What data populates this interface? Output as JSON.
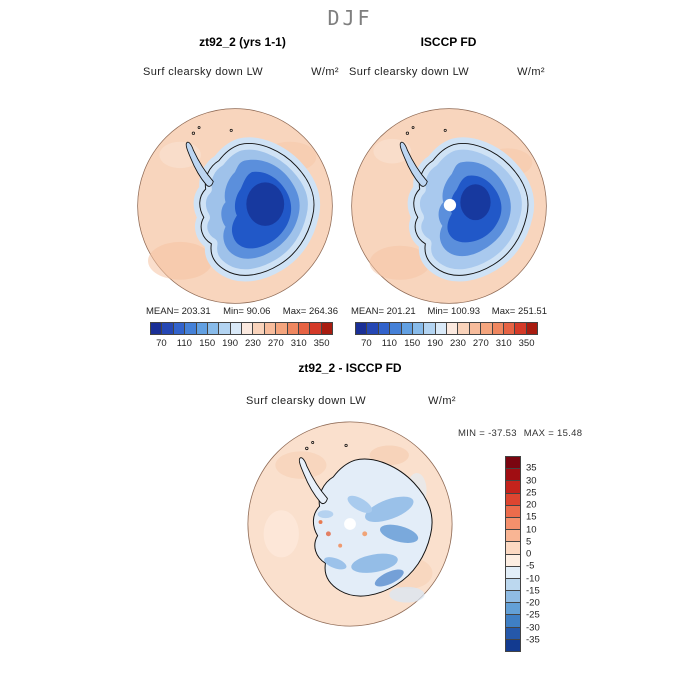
{
  "title": "DJF",
  "panel_left": {
    "title": "zt92_2 (yrs 1-1)",
    "field": "Surf clearsky down LW",
    "units": "W/m²",
    "mean_label": "MEAN=",
    "mean": "203.31",
    "min_label": "Min=",
    "min": "90.06",
    "max_label": "Max=",
    "max": "264.36"
  },
  "panel_right": {
    "title": "ISCCP FD",
    "field": "Surf clearsky down LW",
    "units": "W/m²",
    "mean_label": "MEAN=",
    "mean": "201.21",
    "min_label": "Min=",
    "min": "100.93",
    "max_label": "Max=",
    "max": "251.51"
  },
  "panel_diff": {
    "title": "zt92_2 - ISCCP FD",
    "field": "Surf clearsky down LW",
    "units": "W/m²",
    "min_label": "MIN =",
    "min": "-37.53",
    "max_label": "MAX =",
    "max": "15.48"
  },
  "colorbar": {
    "ticks": [
      "70",
      "110",
      "150",
      "190",
      "230",
      "270",
      "310",
      "350"
    ],
    "colors": [
      "#1a2f96",
      "#2547b4",
      "#3263cc",
      "#4581d8",
      "#62a0e2",
      "#88bbea",
      "#b3d4f2",
      "#d9e9f8",
      "#fbe9df",
      "#f9d3bb",
      "#f7bc9c",
      "#f4a57e",
      "#ef8760",
      "#e66344",
      "#d43a28",
      "#a81c10"
    ]
  },
  "diff_colorbar": {
    "labels": [
      "35",
      "30",
      "25",
      "20",
      "15",
      "10",
      "5",
      "0",
      "-5",
      "-10",
      "-15",
      "-20",
      "-25",
      "-30",
      "-35"
    ],
    "colors": [
      "#7a0510",
      "#a00d12",
      "#c4231c",
      "#dd4530",
      "#ec6c4c",
      "#f5906c",
      "#f9b594",
      "#fcd9c2",
      "#fdeee2",
      "#e2eef8",
      "#bcd8ef",
      "#8fbce4",
      "#63a0d6",
      "#3f7fc4",
      "#2558aa",
      "#123a90"
    ]
  },
  "chart_data": [
    {
      "type": "heatmap",
      "panel": "top-left",
      "title": "zt92_2 (yrs 1-1)",
      "variable": "Surf clearsky down LW",
      "units": "W/m^2",
      "season": "DJF",
      "projection": "south polar stereographic",
      "region": "Antarctica and Southern Ocean",
      "stats": {
        "mean": 203.31,
        "min": 90.06,
        "max": 264.36
      },
      "colorbar": {
        "orientation": "horizontal",
        "ticks": [
          70,
          110,
          150,
          190,
          230,
          270,
          310,
          350
        ],
        "range": [
          50,
          370
        ]
      },
      "pattern": "low values (~90-150 W/m^2, blue) over the Antarctic continent with minimum over East Antarctic plateau; high values (~230-270 W/m^2, pale orange) over surrounding ocean"
    },
    {
      "type": "heatmap",
      "panel": "top-right",
      "title": "ISCCP FD",
      "variable": "Surf clearsky down LW",
      "units": "W/m^2",
      "season": "DJF",
      "projection": "south polar stereographic",
      "region": "Antarctica and Southern Ocean",
      "stats": {
        "mean": 201.21,
        "min": 100.93,
        "max": 251.51
      },
      "colorbar": {
        "orientation": "horizontal",
        "ticks": [
          70,
          110,
          150,
          190,
          230,
          270,
          310,
          350
        ],
        "range": [
          50,
          370
        ]
      },
      "pattern": "similar distribution to model panel; white missing-data hole at the pole"
    },
    {
      "type": "heatmap",
      "panel": "bottom",
      "title": "zt92_2 - ISCCP FD",
      "variable": "Surf clearsky down LW",
      "units": "W/m^2",
      "season": "DJF",
      "projection": "south polar stereographic",
      "region": "Antarctica and Southern Ocean",
      "stats": {
        "min": -37.53,
        "max": 15.48
      },
      "colorbar": {
        "orientation": "vertical",
        "ticks": [
          35,
          30,
          25,
          20,
          15,
          10,
          5,
          0,
          -5,
          -10,
          -15,
          -20,
          -25,
          -30,
          -35
        ],
        "range": [
          -40,
          40
        ]
      },
      "pattern": "small positive differences (pale orange) over ocean; negative differences (-10 to -25, blue streaks) over East Antarctica and along the coast; white missing-data hole at the pole"
    }
  ]
}
